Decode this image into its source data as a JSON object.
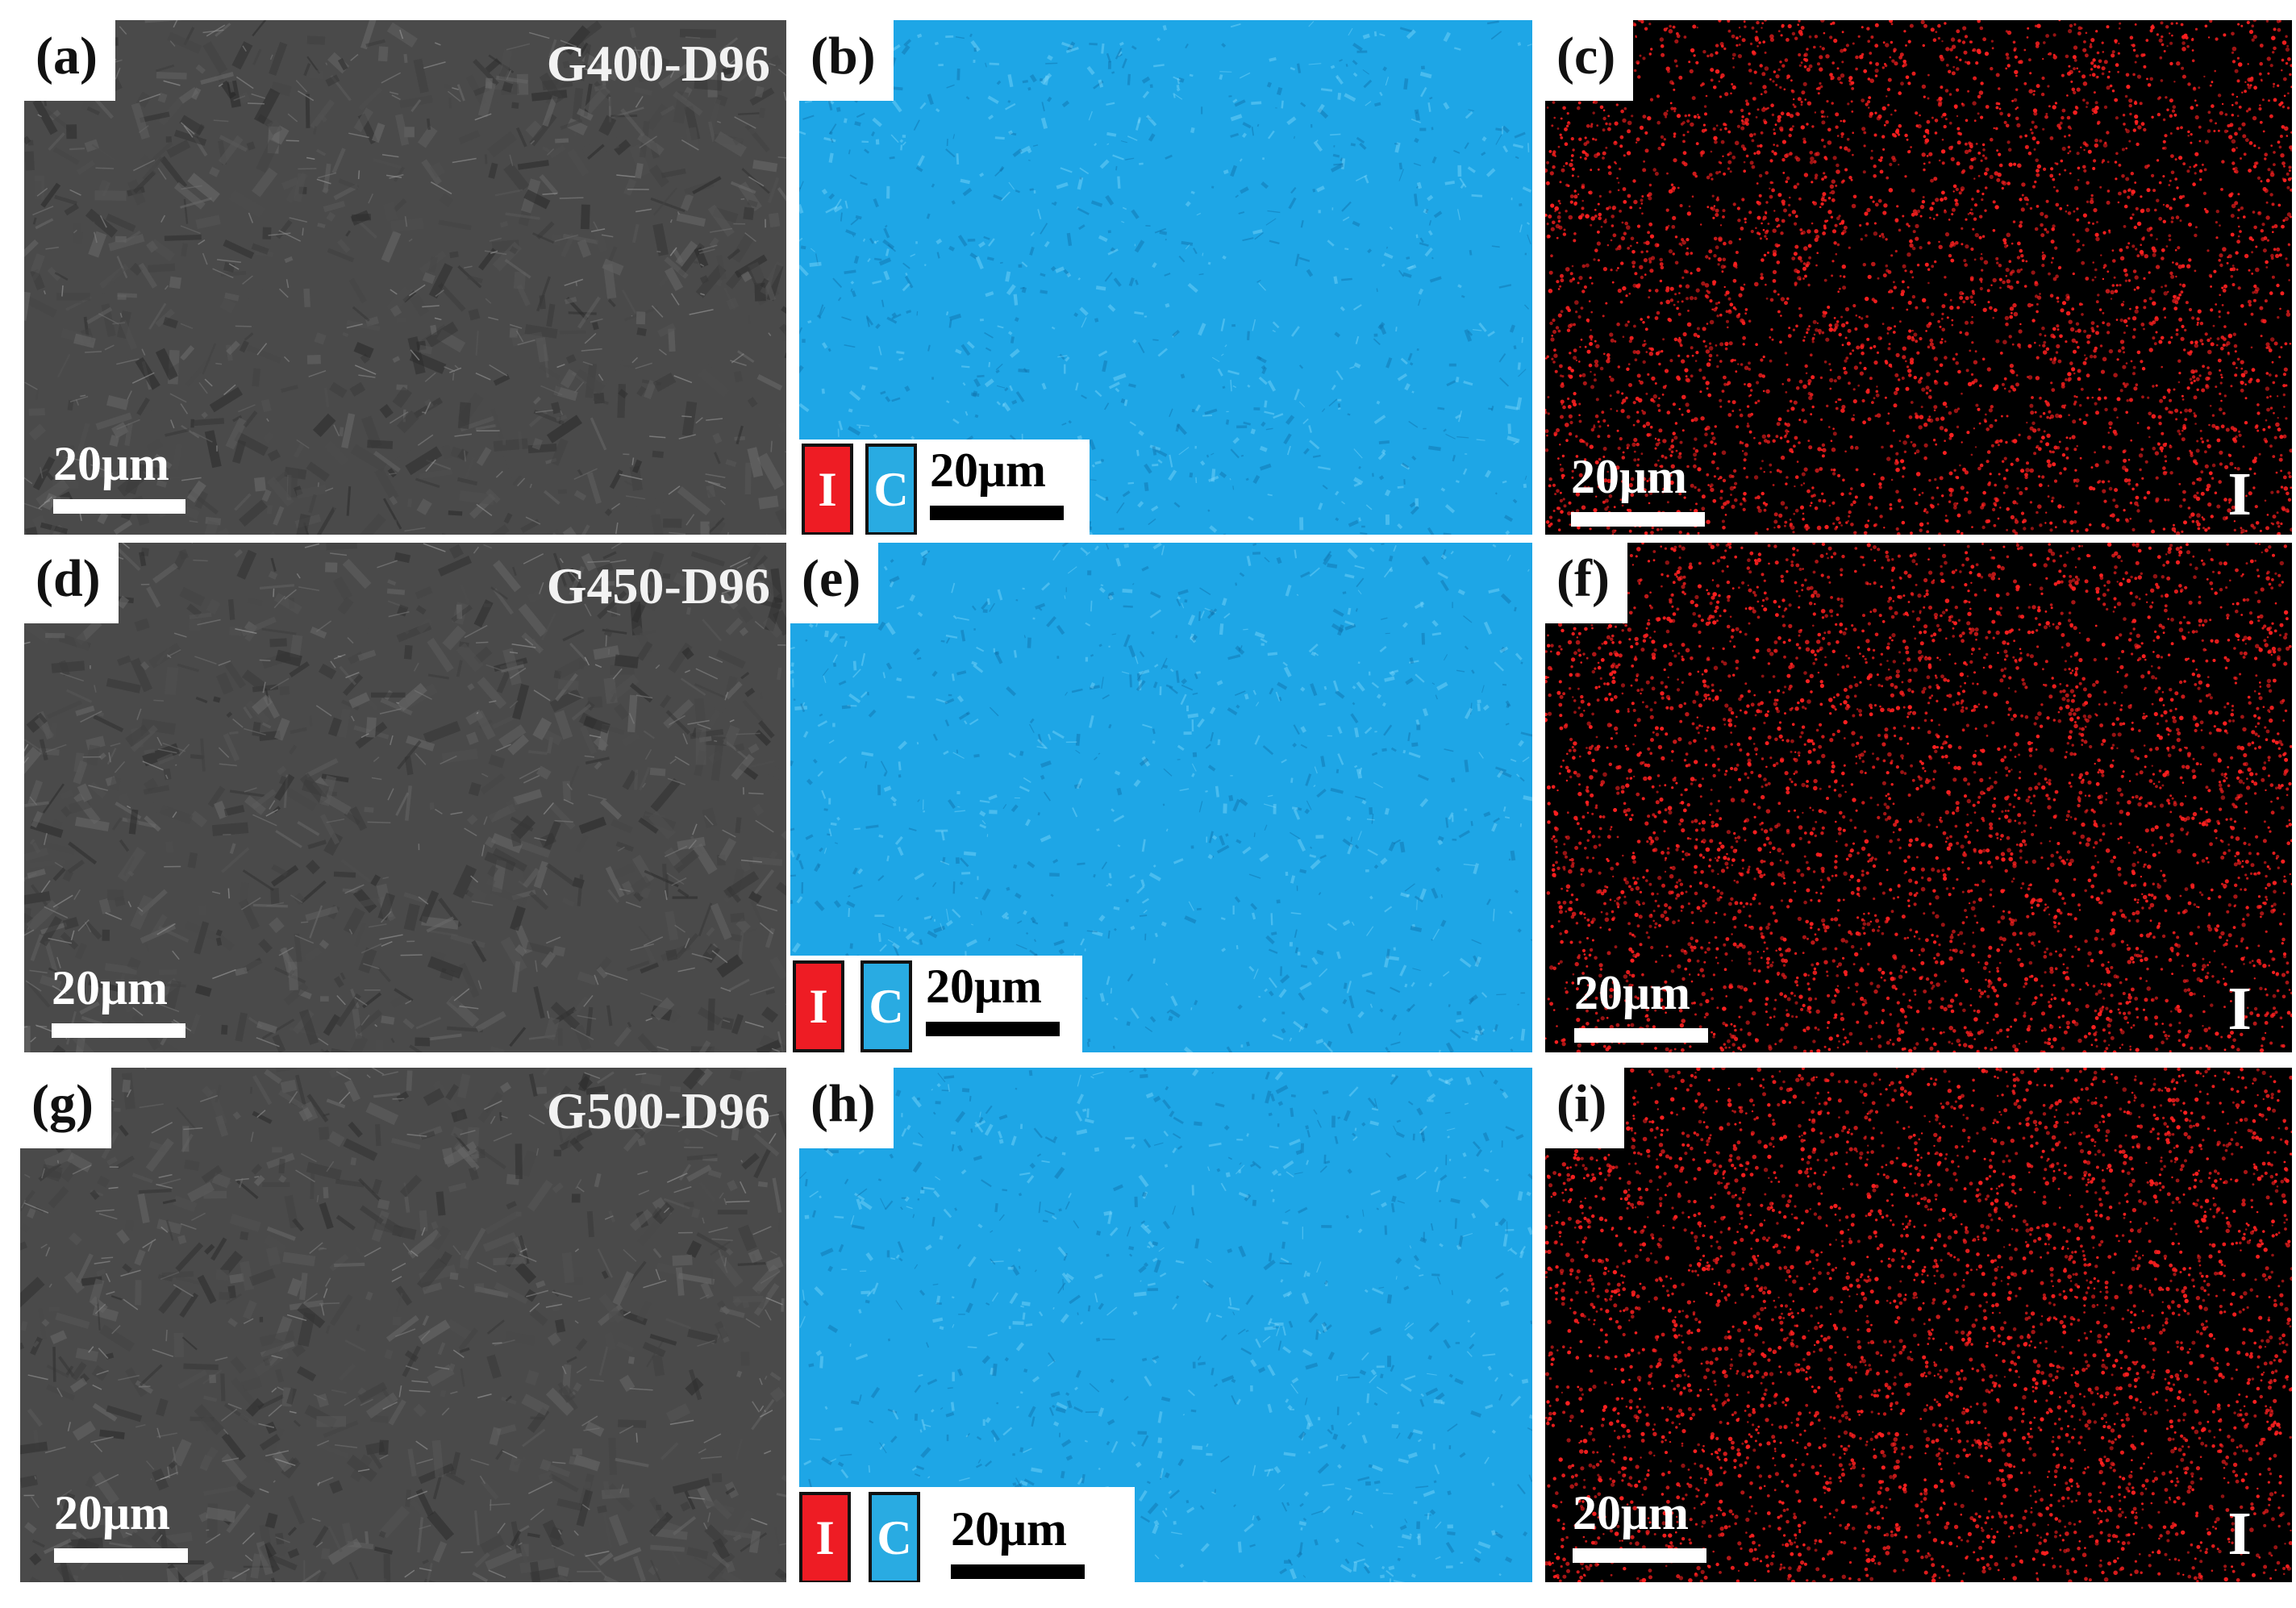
{
  "figure": {
    "rows": [
      {
        "sample": "G400-D96",
        "sem": {
          "label": "(a)",
          "scalebar": "20μm"
        },
        "overlay": {
          "label": "(b)",
          "scalebar": "20μm",
          "keys": [
            "I",
            "C"
          ]
        },
        "map": {
          "label": "(c)",
          "scalebar": "20μm",
          "element": "I"
        }
      },
      {
        "sample": "G450-D96",
        "sem": {
          "label": "(d)",
          "scalebar": "20μm"
        },
        "overlay": {
          "label": "(e)",
          "scalebar": "20μm",
          "keys": [
            "I",
            "C"
          ]
        },
        "map": {
          "label": "(f)",
          "scalebar": "20μm",
          "element": "I"
        }
      },
      {
        "sample": "G500-D96",
        "sem": {
          "label": "(g)",
          "scalebar": "20μm"
        },
        "overlay": {
          "label": "(h)",
          "scalebar": "20μm",
          "keys": [
            "I",
            "C"
          ]
        },
        "map": {
          "label": "(i)",
          "scalebar": "20μm",
          "element": "I"
        }
      }
    ],
    "colors": {
      "iodine": "#ee1c24",
      "carbon": "#29abe2",
      "sem_background": "#4a4a4a",
      "overlay_background": "#1ea6e6",
      "map_background": "#000000",
      "map_dot": "#ff2020"
    },
    "icons": {
      "iodine_key": "red-square-key",
      "carbon_key": "cyan-square-key"
    }
  }
}
